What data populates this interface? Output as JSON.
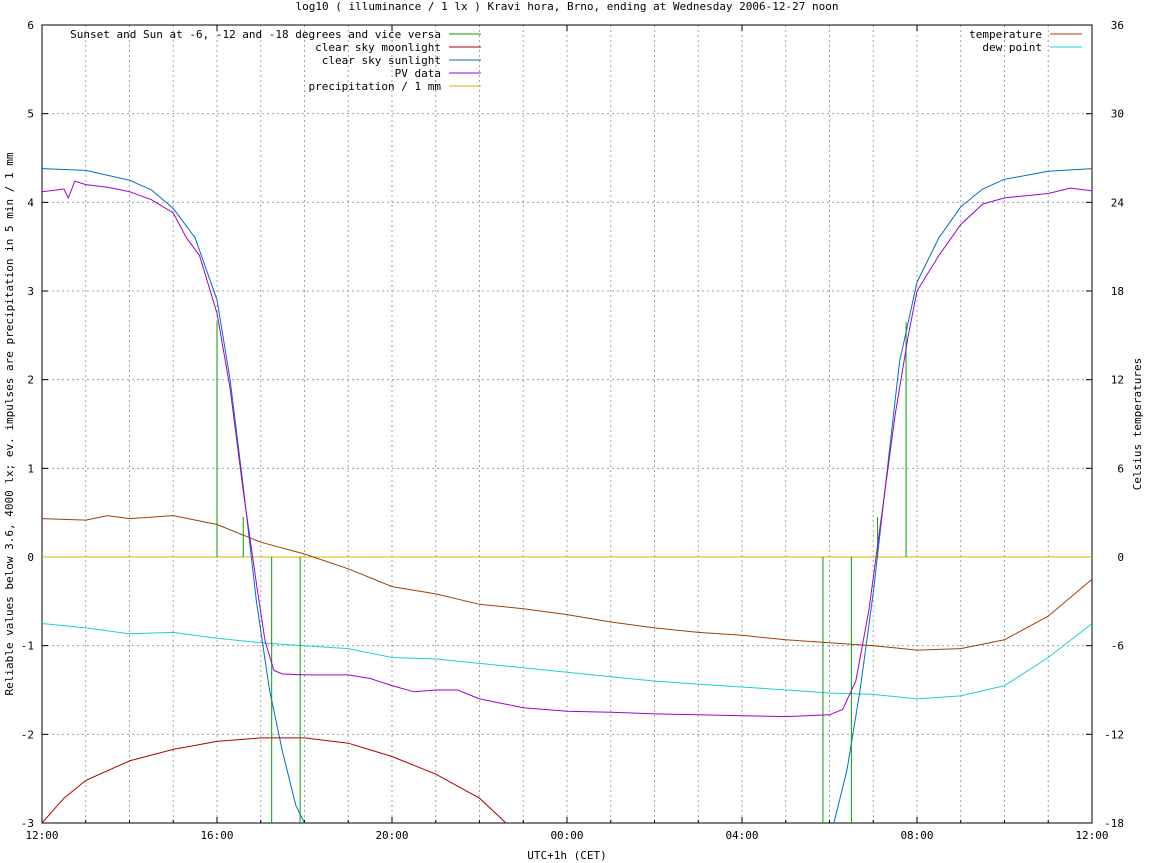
{
  "chart_data": {
    "type": "line",
    "title": "log10 ( illuminance / 1 lx ) Kravi hora, Brno, ending at Wednesday 2006-12-27 noon",
    "xlabel": "UTC+1h (CET)",
    "ylabel": "Reliable values below 3.6, 4000 lx; ev. impulses are precipitation in 5 min / 1 mm",
    "y2label": "Celsius temperatures",
    "x_unit": "hours since 12:00",
    "xlim": [
      0,
      24
    ],
    "ylim": [
      -3,
      6
    ],
    "y2lim": [
      -18,
      36
    ],
    "x_ticks": [
      {
        "x": 0,
        "label": "12:00"
      },
      {
        "x": 4,
        "label": "16:00"
      },
      {
        "x": 8,
        "label": "20:00"
      },
      {
        "x": 12,
        "label": "00:00"
      },
      {
        "x": 16,
        "label": "04:00"
      },
      {
        "x": 20,
        "label": "08:00"
      },
      {
        "x": 24,
        "label": "12:00"
      }
    ],
    "y_ticks": [
      "-3",
      "-2",
      "-1",
      "0",
      "1",
      "2",
      "3",
      "4",
      "5",
      "6"
    ],
    "y2_ticks": [
      "-18",
      "-12",
      "-6",
      "0",
      "6",
      "12",
      "18",
      "24",
      "30",
      "36"
    ],
    "grid": true,
    "legend_left": [
      {
        "label": "Sunset and Sun at -6, -12 and -18 degrees and vice versa",
        "color": "#00a000"
      },
      {
        "label": "clear sky moonlight",
        "color": "#b00000"
      },
      {
        "label": "clear sky sunlight",
        "color": "#0070c0"
      },
      {
        "label": "PV data",
        "color": "#a000d0"
      },
      {
        "label": "precipitation / 1 mm",
        "color": "#e0b000"
      }
    ],
    "legend_right": [
      {
        "label": "temperature",
        "color": "#a04000"
      },
      {
        "label": "dew point",
        "color": "#20d0d0"
      }
    ],
    "sun_markers": [
      {
        "x": 4.0,
        "top": 2.65
      },
      {
        "x": 4.6,
        "top": 0.45
      },
      {
        "x": 5.25,
        "top": 0
      },
      {
        "x": 5.9,
        "top": 0
      },
      {
        "x": 17.85,
        "top": 0
      },
      {
        "x": 18.5,
        "top": 0
      },
      {
        "x": 19.1,
        "top": 0.45
      },
      {
        "x": 19.75,
        "top": 2.65
      }
    ],
    "series": [
      {
        "name": "clear sky moonlight",
        "color": "#b00000",
        "points": [
          [
            0,
            -3
          ],
          [
            0.5,
            -2.72
          ],
          [
            1,
            -2.52
          ],
          [
            2,
            -2.3
          ],
          [
            3,
            -2.17
          ],
          [
            4,
            -2.08
          ],
          [
            5,
            -2.04
          ],
          [
            6,
            -2.04
          ],
          [
            7,
            -2.1
          ],
          [
            8,
            -2.25
          ],
          [
            9,
            -2.45
          ],
          [
            10,
            -2.72
          ],
          [
            10.5,
            -2.95
          ],
          [
            10.6,
            -3
          ]
        ]
      },
      {
        "name": "clear sky sunlight",
        "color": "#0070c0",
        "points": [
          [
            0,
            4.38
          ],
          [
            1,
            4.36
          ],
          [
            2,
            4.25
          ],
          [
            2.5,
            4.14
          ],
          [
            3,
            3.93
          ],
          [
            3.5,
            3.6
          ],
          [
            4,
            2.9
          ],
          [
            4.3,
            2.0
          ],
          [
            4.6,
            0.8
          ],
          [
            4.9,
            -0.5
          ],
          [
            5.2,
            -1.5
          ],
          [
            5.5,
            -2.2
          ],
          [
            5.8,
            -2.8
          ],
          [
            6.0,
            -3
          ]
        ],
        "points2": [
          [
            18.1,
            -3
          ],
          [
            18.4,
            -2.4
          ],
          [
            18.7,
            -1.5
          ],
          [
            19.0,
            -0.4
          ],
          [
            19.3,
            0.9
          ],
          [
            19.6,
            2.2
          ],
          [
            20.0,
            3.1
          ],
          [
            20.5,
            3.6
          ],
          [
            21,
            3.95
          ],
          [
            21.5,
            4.15
          ],
          [
            22,
            4.26
          ],
          [
            23,
            4.35
          ],
          [
            24,
            4.38
          ]
        ]
      },
      {
        "name": "PV data",
        "color": "#a000d0",
        "points": [
          [
            0,
            4.12
          ],
          [
            0.5,
            4.15
          ],
          [
            0.6,
            4.05
          ],
          [
            0.75,
            4.24
          ],
          [
            1,
            4.2
          ],
          [
            1.5,
            4.17
          ],
          [
            2,
            4.12
          ],
          [
            2.5,
            4.03
          ],
          [
            3,
            3.88
          ],
          [
            3.3,
            3.6
          ],
          [
            3.6,
            3.4
          ],
          [
            4,
            2.75
          ],
          [
            4.3,
            1.9
          ],
          [
            4.6,
            0.75
          ],
          [
            4.9,
            -0.3
          ],
          [
            5.1,
            -0.95
          ],
          [
            5.3,
            -1.28
          ],
          [
            5.5,
            -1.32
          ],
          [
            6,
            -1.33
          ],
          [
            7,
            -1.33
          ],
          [
            7.5,
            -1.37
          ],
          [
            8,
            -1.45
          ],
          [
            8.5,
            -1.52
          ],
          [
            9,
            -1.5
          ],
          [
            9.5,
            -1.5
          ],
          [
            10,
            -1.6
          ],
          [
            11,
            -1.7
          ],
          [
            12,
            -1.74
          ],
          [
            13,
            -1.75
          ],
          [
            14,
            -1.77
          ],
          [
            15,
            -1.78
          ],
          [
            16,
            -1.79
          ],
          [
            17,
            -1.8
          ],
          [
            18,
            -1.78
          ],
          [
            18.3,
            -1.72
          ],
          [
            18.6,
            -1.4
          ],
          [
            18.9,
            -0.6
          ],
          [
            19.2,
            0.5
          ],
          [
            19.5,
            1.6
          ],
          [
            19.8,
            2.5
          ],
          [
            20,
            3.0
          ],
          [
            20.5,
            3.4
          ],
          [
            21,
            3.75
          ],
          [
            21.5,
            3.98
          ],
          [
            22,
            4.05
          ],
          [
            23,
            4.1
          ],
          [
            23.5,
            4.16
          ],
          [
            24,
            4.13
          ]
        ]
      },
      {
        "name": "temperature",
        "color": "#a04000",
        "points": [
          [
            0,
            2.6
          ],
          [
            1,
            2.5
          ],
          [
            1.5,
            2.8
          ],
          [
            2,
            2.6
          ],
          [
            3,
            2.8
          ],
          [
            4,
            2.2
          ],
          [
            5,
            1.0
          ],
          [
            6,
            0.2
          ],
          [
            7,
            -0.8
          ],
          [
            8,
            -2.0
          ],
          [
            9,
            -2.5
          ],
          [
            10,
            -3.2
          ],
          [
            11,
            -3.5
          ],
          [
            12,
            -3.9
          ],
          [
            13,
            -4.4
          ],
          [
            14,
            -4.8
          ],
          [
            15,
            -5.1
          ],
          [
            16,
            -5.3
          ],
          [
            17,
            -5.6
          ],
          [
            18,
            -5.8
          ],
          [
            19,
            -6.0
          ],
          [
            20,
            -6.3
          ],
          [
            21,
            -6.2
          ],
          [
            22,
            -5.6
          ],
          [
            23,
            -4.0
          ],
          [
            24,
            -1.5
          ]
        ]
      },
      {
        "name": "dew point",
        "color": "#20d0d0",
        "points": [
          [
            0,
            -4.5
          ],
          [
            1,
            -4.8
          ],
          [
            2,
            -5.2
          ],
          [
            3,
            -5.1
          ],
          [
            4,
            -5.5
          ],
          [
            5,
            -5.8
          ],
          [
            6,
            -6.0
          ],
          [
            7,
            -6.2
          ],
          [
            8,
            -6.8
          ],
          [
            9,
            -6.9
          ],
          [
            10,
            -7.2
          ],
          [
            11,
            -7.5
          ],
          [
            12,
            -7.8
          ],
          [
            13,
            -8.1
          ],
          [
            14,
            -8.4
          ],
          [
            15,
            -8.6
          ],
          [
            16,
            -8.8
          ],
          [
            17,
            -9.0
          ],
          [
            18,
            -9.2
          ],
          [
            19,
            -9.3
          ],
          [
            20,
            -9.6
          ],
          [
            21,
            -9.4
          ],
          [
            22,
            -8.7
          ],
          [
            23,
            -6.8
          ],
          [
            24,
            -4.5
          ]
        ]
      },
      {
        "name": "precipitation / 1 mm",
        "color": "#e0b000",
        "points": [
          [
            0,
            0
          ],
          [
            24,
            0
          ]
        ]
      }
    ]
  }
}
